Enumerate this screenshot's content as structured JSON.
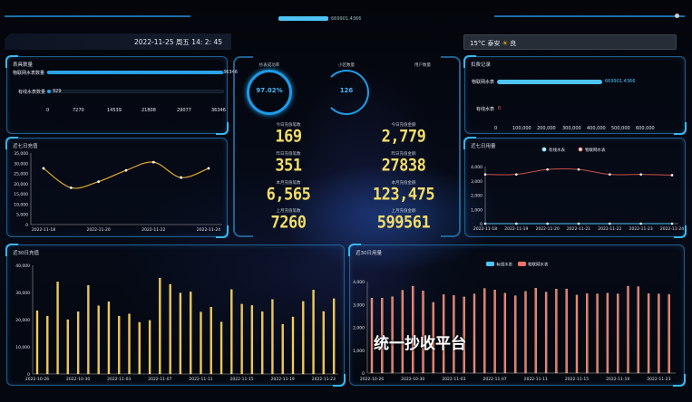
{
  "header": {
    "total_value": "669901.4366",
    "datetime": "2022-11-25 周五 14: 2: 45",
    "weather": {
      "temp": "15°C",
      "city": "泰安",
      "icon": "sun-icon",
      "quality": "良"
    }
  },
  "overlay_title": "统一抄收平台",
  "meter_count": {
    "title": "表具数量",
    "items": [
      {
        "label": "物联网水表数量",
        "value": "36346",
        "fraction": 1.0
      },
      {
        "label": "有线水表数量",
        "value": "929",
        "fraction": 0.026
      }
    ],
    "axis": [
      "0",
      "7270",
      "14539",
      "21808",
      "29077",
      "36346"
    ]
  },
  "deduction": {
    "title": "扣费记录",
    "items": [
      {
        "label": "物联网水表",
        "value": "669901.4366"
      },
      {
        "label": "有线水表",
        "value": "0"
      }
    ],
    "axis": [
      "0",
      "100,000",
      "200,000",
      "300,000",
      "400,000",
      "500,000",
      "600,000"
    ]
  },
  "center": {
    "gauges": [
      {
        "label": "抄表成功率",
        "value": "97.02%"
      },
      {
        "label": "小区数量",
        "value": "126"
      },
      {
        "label": "用户数量",
        "value": ""
      }
    ],
    "stats": [
      {
        "label": "今日充值笔数",
        "value": "169"
      },
      {
        "label": "今日充值金额",
        "value": "2,779"
      },
      {
        "label": "昨日充值笔数",
        "value": "351"
      },
      {
        "label": "昨日充值金额",
        "value": "27838"
      },
      {
        "label": "本月充值笔数",
        "value": "6,565"
      },
      {
        "label": "本月充值金额",
        "value": "123,475"
      },
      {
        "label": "上月充值笔数",
        "value": "7260"
      },
      {
        "label": "上月充值金额",
        "value": "599561"
      }
    ]
  },
  "colors": {
    "accent": "#2aa2e8",
    "gold": "#f5c542",
    "red": "#f0706a",
    "cyan": "#4fc3f7"
  },
  "chart_data": [
    {
      "type": "line",
      "title": "近七日充值",
      "x": [
        "2022-11-18",
        "2022-11-19",
        "2022-11-20",
        "2022-11-21",
        "2022-11-22",
        "2022-11-23",
        "2022-11-24"
      ],
      "xticks": [
        "2022-11-18",
        "2022-11-20",
        "2022-11-22",
        "2022-11-24"
      ],
      "values": [
        27500,
        18000,
        21000,
        26500,
        30500,
        23000,
        27500
      ],
      "ylim": [
        0,
        35000
      ],
      "yticks": [
        "0",
        "5,000",
        "10,000",
        "15,000",
        "20,000",
        "25,000",
        "30,000",
        "35,000"
      ]
    },
    {
      "type": "line",
      "title": "近七日用量",
      "x": [
        "2022-11-18",
        "2022-11-19",
        "2022-11-20",
        "2022-11-21",
        "2022-11-22",
        "2022-11-23",
        "2022-11-24"
      ],
      "series": [
        {
          "name": "有线水表",
          "values": [
            0,
            0,
            0,
            0,
            0,
            0,
            0
          ]
        },
        {
          "name": "物联网水表",
          "values": [
            3450,
            3450,
            3800,
            3800,
            3450,
            3450,
            3400
          ]
        }
      ],
      "ylim": [
        0,
        4000
      ],
      "yticks": [
        "0",
        "1,000",
        "2,000",
        "3,000",
        "4,000"
      ],
      "legend": "top"
    },
    {
      "type": "bar",
      "title": "近30日充值",
      "xticks": [
        "2022-10-26",
        "2022-10-30",
        "2022-11-03",
        "2022-11-07",
        "2022-11-11",
        "2022-11-15",
        "2022-11-19",
        "2022-11-23"
      ],
      "values": [
        23300,
        21300,
        33900,
        20000,
        22900,
        32600,
        25100,
        26600,
        21300,
        22100,
        19000,
        19700,
        35300,
        33000,
        29800,
        30200,
        22800,
        24600,
        19100,
        31100,
        25700,
        25200,
        22900,
        27400,
        18300,
        21000,
        26700,
        30900,
        23000,
        27700
      ],
      "ylim": [
        0,
        40000
      ],
      "yticks": [
        "0",
        "10,000",
        "20,000",
        "30,000",
        "40,000"
      ]
    },
    {
      "type": "bar",
      "title": "近30日用量",
      "xticks": [
        "2022-10-26",
        "2022-10-30",
        "2022-11-03",
        "2022-11-07",
        "2022-11-11",
        "2022-11-15",
        "2022-11-19",
        "2022-11-23"
      ],
      "series": [
        {
          "name": "有线水表",
          "values": [
            0,
            0,
            0,
            0,
            0,
            0,
            0,
            0,
            0,
            0,
            0,
            0,
            0,
            0,
            0,
            0,
            0,
            0,
            0,
            0,
            0,
            0,
            0,
            0,
            0,
            0,
            0,
            0,
            0,
            0
          ]
        },
        {
          "name": "物联网水表",
          "values": [
            3280,
            3280,
            3340,
            3620,
            3800,
            3590,
            3090,
            3430,
            3390,
            3330,
            3460,
            3700,
            3630,
            3490,
            3380,
            3570,
            3710,
            3540,
            3670,
            3680,
            3410,
            3470,
            3460,
            3490,
            3460,
            3790,
            3780,
            3470,
            3460,
            3430
          ]
        }
      ],
      "ylim": [
        0,
        4000
      ],
      "yticks": [
        "0",
        "1,000",
        "2,000",
        "3,000",
        "4,000"
      ],
      "legend": "top"
    }
  ]
}
